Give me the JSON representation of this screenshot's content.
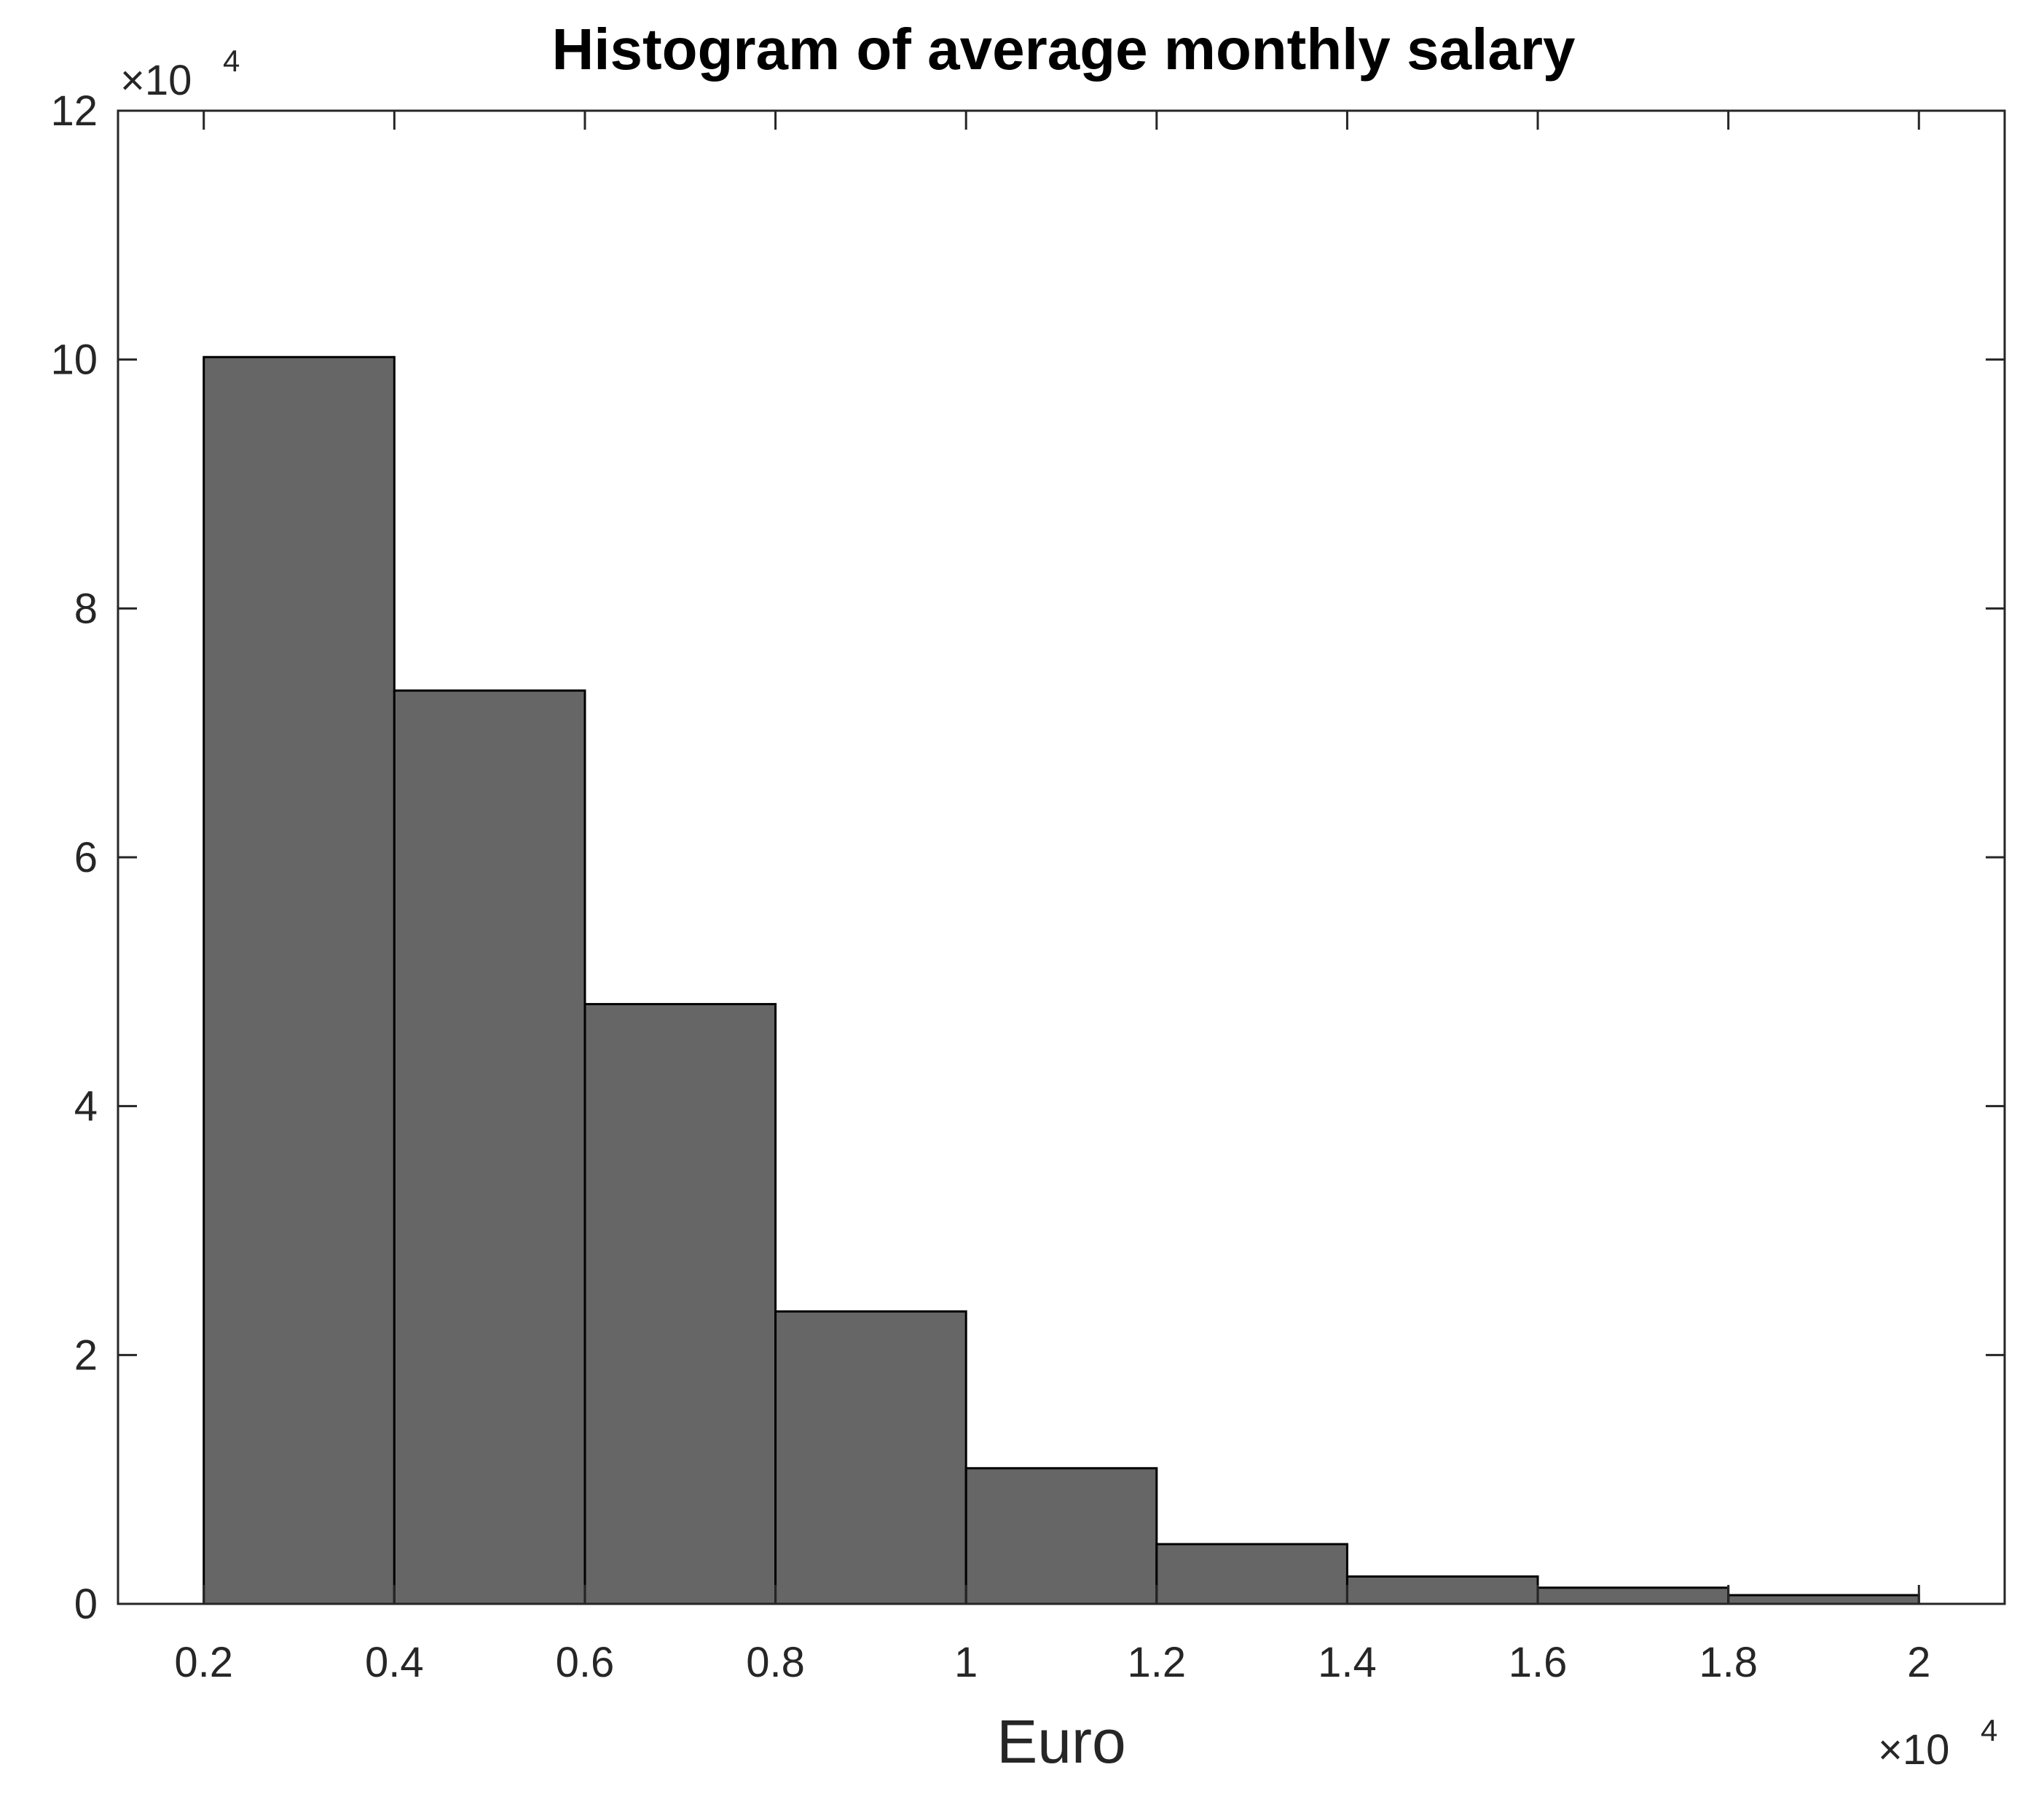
{
  "chart_data": {
    "type": "bar",
    "title": "Histogram of average monthly salary",
    "xlabel": "Euro",
    "ylabel": "",
    "bin_edges": [
      2000,
      4000,
      6000,
      8000,
      10000,
      12000,
      14000,
      16000,
      18000,
      20000
    ],
    "values": [
      100200,
      73400,
      48200,
      23500,
      10900,
      4800,
      2200,
      1300,
      700
    ],
    "xlim": [
      1100,
      20900
    ],
    "ylim": [
      0,
      120000
    ],
    "x_ticks": [
      2000,
      4000,
      6000,
      8000,
      10000,
      12000,
      14000,
      16000,
      18000,
      20000
    ],
    "x_tick_labels": [
      "0.2",
      "0.4",
      "0.6",
      "0.8",
      "1",
      "1.2",
      "1.4",
      "1.6",
      "1.8",
      "2"
    ],
    "y_ticks": [
      0,
      20000,
      40000,
      60000,
      80000,
      100000,
      120000
    ],
    "y_tick_labels": [
      "0",
      "2",
      "4",
      "6",
      "8",
      "10",
      "12"
    ],
    "x_exponent_label": "×10",
    "x_exponent_power": "4",
    "y_exponent_label": "×10",
    "y_exponent_power": "4",
    "bar_color": "#666666",
    "edge_color": "#000000",
    "grid": false
  }
}
